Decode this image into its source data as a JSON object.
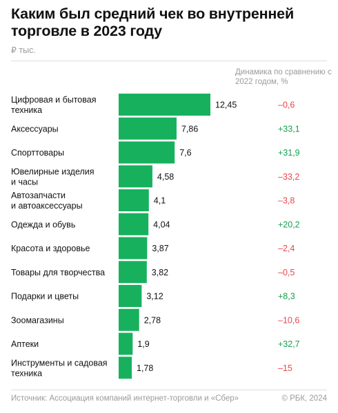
{
  "title": "Каким был средний чек во внутренней торговле в 2023 году",
  "unit_label": "₽ тыс.",
  "change_header": "Динамика по сравнению с 2022 годом, %",
  "footer": {
    "source": "Источник: Ассоциация компаний интернет-торговли и «Сбер»",
    "copyright": "© РБК, 2024"
  },
  "colors": {
    "bar": "#17b15e",
    "positive": "#14a04e",
    "negative": "#e5484d",
    "text": "#111111",
    "muted": "#9a9a9a"
  },
  "chart_data": {
    "type": "bar",
    "orientation": "horizontal",
    "categories": [
      [
        "Цифровая и бытовая",
        "техника"
      ],
      [
        "Аксессуары"
      ],
      [
        "Спорттовары"
      ],
      [
        "Ювелирные изделия",
        "и часы"
      ],
      [
        "Автозапчасти",
        "и автоаксессуары"
      ],
      [
        "Одежда и обувь"
      ],
      [
        "Красота и здоровье"
      ],
      [
        "Товары для творчества"
      ],
      [
        "Подарки и цветы"
      ],
      [
        "Зоомагазины"
      ],
      [
        "Аптеки"
      ],
      [
        "Инструменты и садовая",
        "техника"
      ]
    ],
    "values": [
      12.45,
      7.86,
      7.6,
      4.58,
      4.1,
      4.04,
      3.87,
      3.82,
      3.12,
      2.78,
      1.9,
      1.78
    ],
    "value_labels": [
      "12,45",
      "7,86",
      "7,6",
      "4,58",
      "4,1",
      "4,04",
      "3,87",
      "3,82",
      "3,12",
      "2,78",
      "1,9",
      "1,78"
    ],
    "change": [
      -0.6,
      33.1,
      31.9,
      -33.2,
      -3.8,
      20.2,
      -2.4,
      -0.5,
      8.3,
      -10.6,
      32.7,
      -15
    ],
    "change_labels": [
      "–0,6",
      "+33,1",
      "+31,9",
      "–33,2",
      "–3,8",
      "+20,2",
      "–2,4",
      "–0,5",
      "+8,3",
      "–10,6",
      "+32,7",
      "–15"
    ],
    "xlim": [
      0,
      12.45
    ]
  }
}
